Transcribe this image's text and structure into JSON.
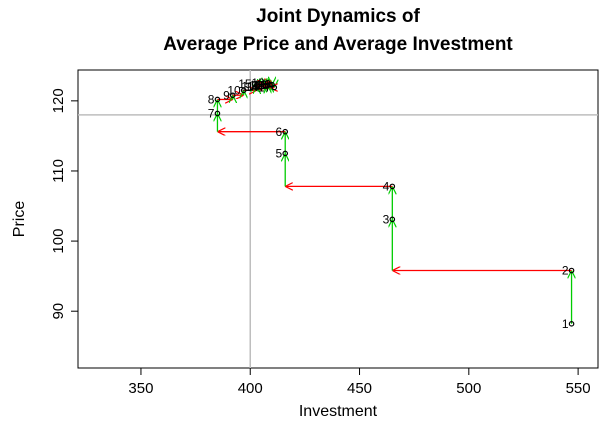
{
  "chart_data": {
    "type": "phase",
    "title": [
      "Joint Dynamics of",
      "Average Price and Average Investment"
    ],
    "x_label": "Investment",
    "y_label": "Price",
    "x": [
      547,
      547,
      465,
      465,
      416,
      416,
      385,
      385,
      392,
      397,
      403,
      408,
      410,
      405,
      402,
      407,
      411,
      409,
      406,
      408
    ],
    "y": [
      88.2,
      95.8,
      103.1,
      107.8,
      112.5,
      115.6,
      118.2,
      120.2,
      120.8,
      121.5,
      122.1,
      122.6,
      122.3,
      122.0,
      122.4,
      122.2,
      121.9,
      122.3,
      122.1,
      122.2
    ],
    "labels": [
      "1",
      "2",
      "3",
      "4",
      "5",
      "6",
      "7",
      "8",
      "9",
      "10",
      "11",
      "12",
      "13",
      "14",
      "15",
      "16",
      "17",
      "18",
      "19",
      "20"
    ],
    "xlim": [
      321.2,
      559.1
    ],
    "ylim": [
      81.9,
      124.4
    ],
    "xticks": [
      350,
      400,
      450,
      500,
      550
    ],
    "yticks": [
      90,
      100,
      110,
      120
    ],
    "hline": 118,
    "vline": 400,
    "x_step_color": "#ff0000",
    "y_step_color": "#00cc00",
    "point_color": "#000000",
    "ref_color": "#bebebe"
  }
}
